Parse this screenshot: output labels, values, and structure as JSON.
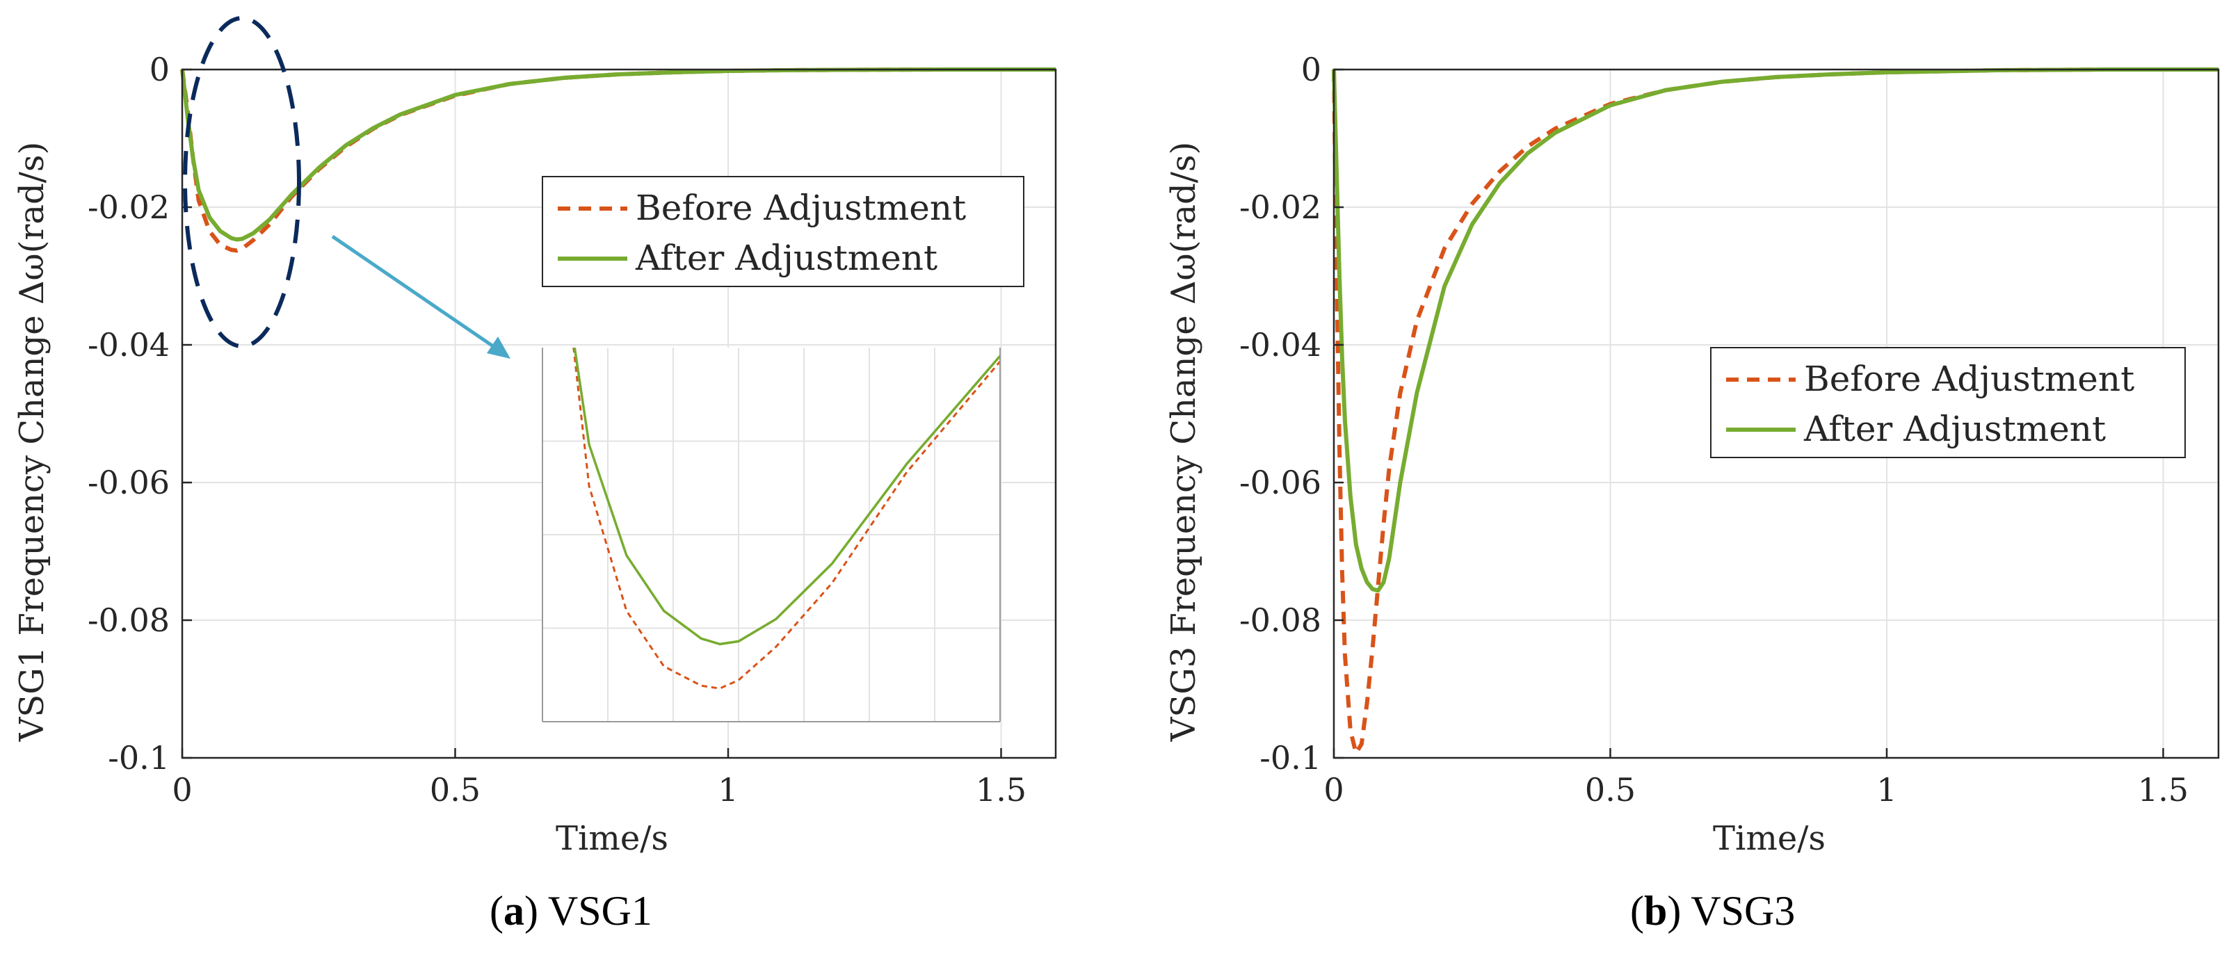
{
  "colors": {
    "before": "#d95319",
    "after": "#77ac30",
    "grid": "#e3e3e3",
    "axis": "#262626",
    "ellipse": "#0b2a5c",
    "arrow": "#4aa9c9"
  },
  "chart_data": [
    {
      "type": "line",
      "id": "a",
      "caption_label": "a",
      "caption_text": " VSG1",
      "xlabel": "Time/s",
      "ylabel": "VSG1 Frequency Change Δω(rad/s)",
      "xlim": [
        0,
        1.6
      ],
      "ylim": [
        -0.1,
        0
      ],
      "xticks": [
        "0",
        "0.5",
        "1",
        "1.5"
      ],
      "xtick_values": [
        0,
        0.5,
        1,
        1.5
      ],
      "yticks": [
        "0",
        "-0.02",
        "-0.04",
        "-0.06",
        "-0.08",
        "-0.1"
      ],
      "ytick_values": [
        0,
        -0.02,
        -0.04,
        -0.06,
        -0.08,
        -0.1
      ],
      "grid": true,
      "legend_position": "upper-right",
      "series": [
        {
          "name": "Before Adjustment",
          "style": "dashed",
          "x": [
            0,
            0.01,
            0.02,
            0.03,
            0.05,
            0.07,
            0.09,
            0.1,
            0.11,
            0.13,
            0.16,
            0.2,
            0.25,
            0.3,
            0.35,
            0.4,
            0.5,
            0.6,
            0.7,
            0.8,
            0.9,
            1.0,
            1.1,
            1.2,
            1.4,
            1.6
          ],
          "y": [
            0,
            -0.006,
            -0.013,
            -0.019,
            -0.0235,
            -0.0255,
            -0.0262,
            -0.0263,
            -0.026,
            -0.0248,
            -0.0225,
            -0.0185,
            -0.0145,
            -0.0112,
            -0.0086,
            -0.0066,
            -0.0038,
            -0.0021,
            -0.0012,
            -0.0007,
            -0.0004,
            -0.0002,
            -0.0001,
            -5e-05,
            0,
            0
          ]
        },
        {
          "name": "After Adjustment",
          "style": "solid",
          "x": [
            0,
            0.01,
            0.02,
            0.03,
            0.05,
            0.07,
            0.09,
            0.1,
            0.11,
            0.13,
            0.16,
            0.2,
            0.25,
            0.3,
            0.35,
            0.4,
            0.5,
            0.6,
            0.7,
            0.8,
            0.9,
            1.0,
            1.1,
            1.2,
            1.4,
            1.6
          ],
          "y": [
            0,
            -0.007,
            -0.013,
            -0.0175,
            -0.0215,
            -0.0235,
            -0.0245,
            -0.0247,
            -0.0246,
            -0.0238,
            -0.0218,
            -0.0182,
            -0.0143,
            -0.011,
            -0.0085,
            -0.0065,
            -0.0037,
            -0.0021,
            -0.0012,
            -0.0007,
            -0.0004,
            -0.0002,
            -0.0001,
            -5e-05,
            0,
            0
          ]
        }
      ],
      "inset": {
        "xlim": [
          0.005,
          0.25
        ],
        "ylim": [
          -0.0275,
          -0.014
        ],
        "x_grid_count": 7
      }
    },
    {
      "type": "line",
      "id": "b",
      "caption_label": "b",
      "caption_text": " VSG3",
      "xlabel": "Time/s",
      "ylabel": "VSG3 Frequency Change Δω(rad/s)",
      "xlim": [
        0,
        1.6
      ],
      "ylim": [
        -0.1,
        0
      ],
      "xticks": [
        "0",
        "0.5",
        "1",
        "1.5"
      ],
      "xtick_values": [
        0,
        0.5,
        1,
        1.5
      ],
      "yticks": [
        "0",
        "-0.02",
        "-0.04",
        "-0.06",
        "-0.08",
        "-0.1"
      ],
      "ytick_values": [
        0,
        -0.02,
        -0.04,
        -0.06,
        -0.08,
        -0.1
      ],
      "grid": true,
      "legend_position": "upper-right",
      "series": [
        {
          "name": "Before Adjustment",
          "style": "dashed",
          "x": [
            0,
            0.005,
            0.01,
            0.015,
            0.02,
            0.03,
            0.04,
            0.05,
            0.06,
            0.07,
            0.08,
            0.09,
            0.1,
            0.12,
            0.15,
            0.2,
            0.25,
            0.3,
            0.35,
            0.4,
            0.5,
            0.6,
            0.7,
            0.8,
            0.9,
            1.0,
            1.2,
            1.4,
            1.6
          ],
          "y": [
            0,
            -0.03,
            -0.055,
            -0.073,
            -0.085,
            -0.096,
            -0.0993,
            -0.098,
            -0.092,
            -0.084,
            -0.075,
            -0.066,
            -0.058,
            -0.047,
            -0.0365,
            -0.026,
            -0.0195,
            -0.0148,
            -0.0112,
            -0.0086,
            -0.005,
            -0.003,
            -0.0018,
            -0.0011,
            -0.0007,
            -0.0004,
            -0.0001,
            0,
            0
          ]
        },
        {
          "name": "After Adjustment",
          "style": "solid",
          "x": [
            0,
            0.005,
            0.01,
            0.015,
            0.02,
            0.03,
            0.04,
            0.05,
            0.06,
            0.07,
            0.08,
            0.09,
            0.1,
            0.12,
            0.15,
            0.2,
            0.25,
            0.3,
            0.35,
            0.4,
            0.5,
            0.6,
            0.7,
            0.8,
            0.9,
            1.0,
            1.2,
            1.4,
            1.6
          ],
          "y": [
            0,
            -0.015,
            -0.03,
            -0.042,
            -0.051,
            -0.062,
            -0.069,
            -0.0725,
            -0.0745,
            -0.0755,
            -0.0757,
            -0.0745,
            -0.071,
            -0.06,
            -0.047,
            -0.0315,
            -0.0225,
            -0.0165,
            -0.0122,
            -0.0092,
            -0.0052,
            -0.003,
            -0.0018,
            -0.0011,
            -0.0007,
            -0.0004,
            -0.0001,
            0,
            0
          ]
        }
      ]
    }
  ]
}
